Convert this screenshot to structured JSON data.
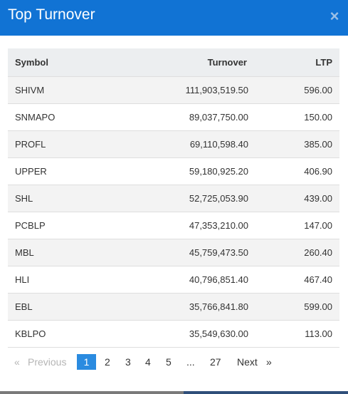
{
  "modal": {
    "title": "Top Turnover",
    "close_glyph": "×"
  },
  "table": {
    "headers": {
      "symbol": "Symbol",
      "turnover": "Turnover",
      "ltp": "LTP"
    },
    "rows": [
      {
        "symbol": "SHIVM",
        "turnover": "111,903,519.50",
        "ltp": "596.00"
      },
      {
        "symbol": "SNMAPO",
        "turnover": "89,037,750.00",
        "ltp": "150.00"
      },
      {
        "symbol": "PROFL",
        "turnover": "69,110,598.40",
        "ltp": "385.00"
      },
      {
        "symbol": "UPPER",
        "turnover": "59,180,925.20",
        "ltp": "406.90"
      },
      {
        "symbol": "SHL",
        "turnover": "52,725,053.90",
        "ltp": "439.00"
      },
      {
        "symbol": "PCBLP",
        "turnover": "47,353,210.00",
        "ltp": "147.00"
      },
      {
        "symbol": "MBL",
        "turnover": "45,759,473.50",
        "ltp": "260.40"
      },
      {
        "symbol": "HLI",
        "turnover": "40,796,851.40",
        "ltp": "467.40"
      },
      {
        "symbol": "EBL",
        "turnover": "35,766,841.80",
        "ltp": "599.00"
      },
      {
        "symbol": "KBLPO",
        "turnover": "35,549,630.00",
        "ltp": "113.00"
      }
    ]
  },
  "pagination": {
    "prev_arrow": "«",
    "prev_label": "Previous",
    "pages": [
      "1",
      "2",
      "3",
      "4",
      "5"
    ],
    "ellipsis": "...",
    "last_page": "27",
    "next_label": "Next",
    "next_arrow": "»",
    "current_page": "1"
  },
  "colors": {
    "header_bg": "#1173d4",
    "active_page": "#2a8be0"
  }
}
